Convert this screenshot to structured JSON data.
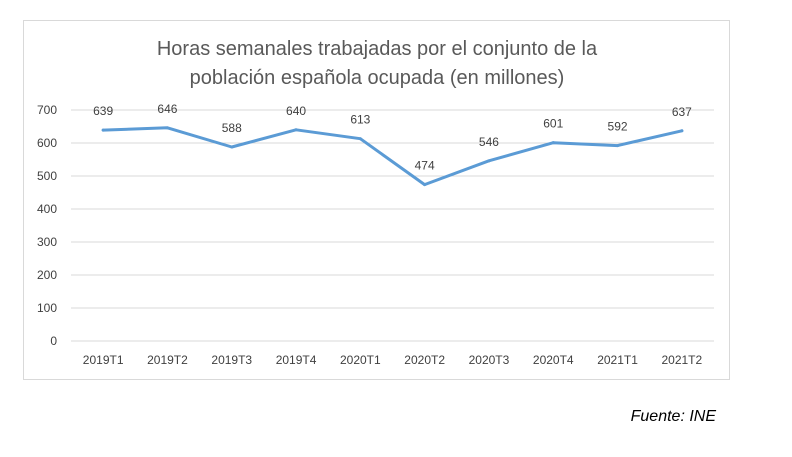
{
  "chart_data": {
    "type": "line",
    "title_lines": [
      "Horas semanales trabajadas por el conjunto de la",
      "población española ocupada (en millones)"
    ],
    "categories": [
      "2019T1",
      "2019T2",
      "2019T3",
      "2019T4",
      "2020T1",
      "2020T2",
      "2020T3",
      "2020T4",
      "2021T1",
      "2021T2"
    ],
    "values": [
      639,
      646,
      588,
      640,
      613,
      474,
      546,
      601,
      592,
      637
    ],
    "ylim": [
      0,
      700
    ],
    "yticks": [
      "0",
      "100",
      "200",
      "300",
      "400",
      "500",
      "600",
      "700"
    ],
    "grid": true,
    "legend": "none",
    "line_color": "#5b9bd5",
    "grid_color": "#d9d9d9"
  },
  "source": "Fuente: INE"
}
